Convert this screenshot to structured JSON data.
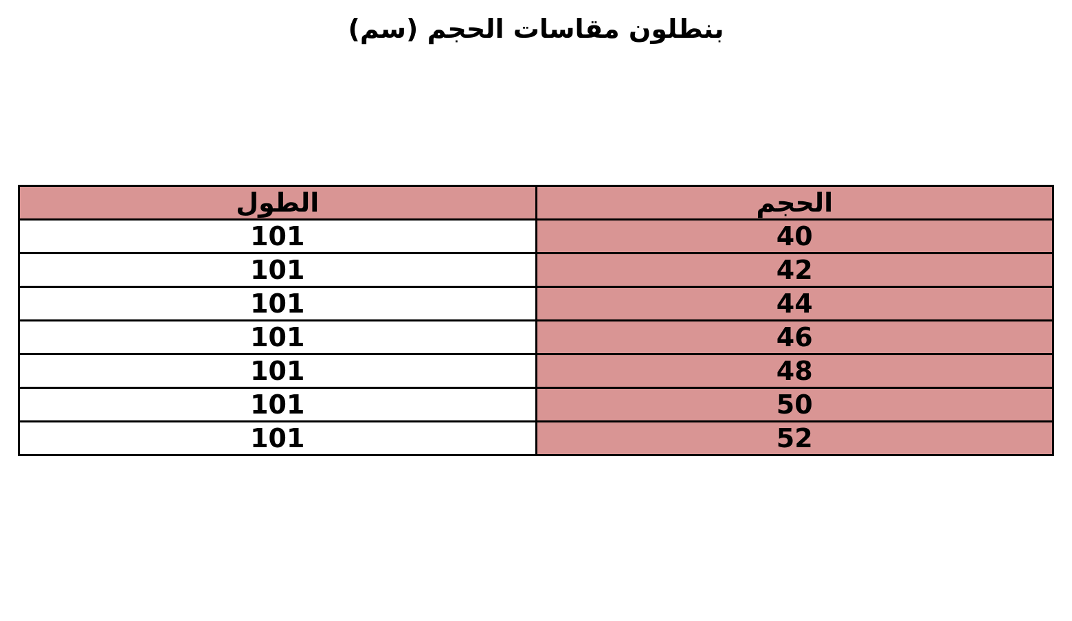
{
  "title": "بنطلون مقاسات الحجم (سم)",
  "colors": {
    "highlight": "#d99594",
    "border": "#000000"
  },
  "table": {
    "headers": [
      "الطول",
      "الحجم"
    ],
    "rows": [
      [
        "101",
        "40"
      ],
      [
        "101",
        "42"
      ],
      [
        "101",
        "44"
      ],
      [
        "101",
        "46"
      ],
      [
        "101",
        "48"
      ],
      [
        "101",
        "50"
      ],
      [
        "101",
        "52"
      ]
    ]
  }
}
